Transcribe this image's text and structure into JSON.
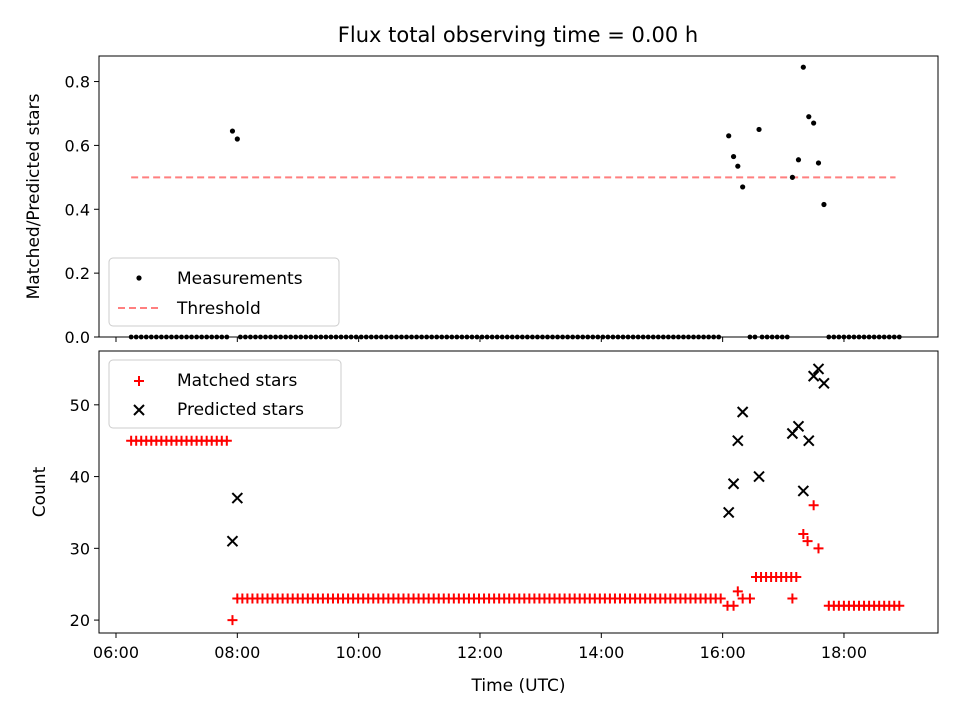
{
  "title": "Flux total observing time = 0.00 h",
  "chart_data": [
    {
      "type": "scatter",
      "panel": "top",
      "ylabel": "Matched/Predicted stars",
      "ylim": [
        0,
        0.88
      ],
      "yticks": [
        0.0,
        0.2,
        0.4,
        0.6,
        0.8
      ],
      "ytick_labels": [
        "0.0",
        "0.2",
        "0.4",
        "0.6",
        "0.8"
      ],
      "xlim": [
        5.72,
        19.55
      ],
      "xtick_values": [
        6,
        8,
        10,
        12,
        14,
        16,
        18
      ],
      "legend": {
        "placement": "lower-left",
        "entries": [
          "Measurements",
          "Threshold"
        ]
      },
      "threshold": {
        "name": "Threshold",
        "value": 0.5,
        "x_start": 6.25,
        "x_end": 18.85,
        "color": "#ff7f7f"
      },
      "series": [
        {
          "name": "Measurements",
          "color": "#000000",
          "x": [
            7.92,
            8.0,
            16.1,
            16.18,
            16.25,
            16.33,
            16.6,
            17.15,
            17.25,
            17.33,
            17.42,
            17.5,
            17.58,
            17.67
          ],
          "y": [
            0.645,
            0.62,
            0.63,
            0.565,
            0.535,
            0.47,
            0.65,
            0.5,
            0.555,
            0.845,
            0.69,
            0.67,
            0.545,
            0.415
          ]
        }
      ],
      "zero_bands": [
        [
          6.25,
          7.85
        ],
        [
          8.05,
          16.0
        ],
        [
          16.45,
          16.55
        ],
        [
          16.65,
          17.1
        ],
        [
          17.75,
          18.95
        ]
      ]
    },
    {
      "type": "scatter",
      "panel": "bottom",
      "ylabel": "Count",
      "xlabel": "Time (UTC)",
      "ylim": [
        18.2,
        57.5
      ],
      "yticks": [
        20,
        30,
        40,
        50
      ],
      "ytick_labels": [
        "20",
        "30",
        "40",
        "50"
      ],
      "xlim": [
        5.72,
        19.55
      ],
      "xtick_values": [
        6,
        8,
        10,
        12,
        14,
        16,
        18
      ],
      "xtick_labels": [
        "06:00",
        "08:00",
        "10:00",
        "12:00",
        "14:00",
        "16:00",
        "18:00"
      ],
      "legend": {
        "placement": "top-left",
        "entries": [
          "Matched stars",
          "Predicted stars"
        ]
      },
      "series": [
        {
          "name": "Matched stars",
          "marker": "plus",
          "color": "#ff0000",
          "segments": [
            {
              "x_start": 6.25,
              "x_end": 7.85,
              "step": 0.083,
              "y": 45
            },
            {
              "x_start": 8.0,
              "x_end": 16.0,
              "step": 0.083,
              "y": 23
            },
            {
              "x_start": 16.55,
              "x_end": 17.25,
              "step": 0.083,
              "y": 26
            },
            {
              "x_start": 17.75,
              "x_end": 18.95,
              "step": 0.083,
              "y": 22
            }
          ],
          "x": [
            7.92,
            16.08,
            16.18,
            16.25,
            16.33,
            16.45,
            17.15,
            17.33,
            17.4,
            17.5,
            17.58
          ],
          "y": [
            20,
            22,
            22,
            24,
            23,
            23,
            23,
            32,
            31,
            36,
            30
          ]
        },
        {
          "name": "Predicted stars",
          "marker": "x",
          "color": "#000000",
          "x": [
            7.92,
            8.0,
            16.1,
            16.18,
            16.25,
            16.33,
            16.6,
            17.15,
            17.25,
            17.33,
            17.42,
            17.5,
            17.58,
            17.67
          ],
          "y": [
            31,
            37,
            35,
            39,
            45,
            49,
            40,
            46,
            47,
            38,
            45,
            54,
            55,
            53
          ]
        }
      ]
    }
  ]
}
